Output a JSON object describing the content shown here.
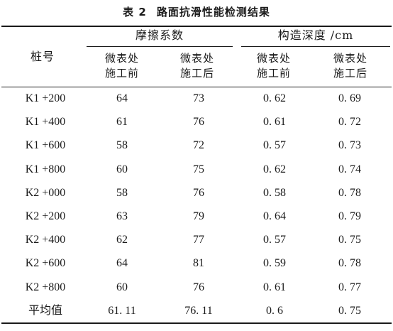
{
  "caption": {
    "number": "表 2",
    "title": "路面抗滑性能检测结果"
  },
  "header": {
    "stake": "桩号",
    "friction": "摩擦系数",
    "texture": "构造深度 /cm",
    "before": [
      "微表处",
      "施工前"
    ],
    "after": [
      "微表处",
      "施工后"
    ]
  },
  "rows": [
    [
      "K1 +200",
      "64",
      "73",
      "0. 62",
      "0. 69"
    ],
    [
      "K1 +400",
      "61",
      "76",
      "0. 61",
      "0. 72"
    ],
    [
      "K1 +600",
      "58",
      "72",
      "0. 57",
      "0. 73"
    ],
    [
      "K1 +800",
      "60",
      "75",
      "0. 62",
      "0. 74"
    ],
    [
      "K2 +000",
      "58",
      "76",
      "0. 58",
      "0. 78"
    ],
    [
      "K2 +200",
      "63",
      "79",
      "0. 64",
      "0. 79"
    ],
    [
      "K2 +400",
      "62",
      "77",
      "0. 57",
      "0. 75"
    ],
    [
      "K2 +600",
      "64",
      "81",
      "0. 59",
      "0. 78"
    ],
    [
      "K2 +800",
      "60",
      "76",
      "0. 61",
      "0. 77"
    ],
    [
      "平均值",
      "61. 11",
      "76. 11",
      "0. 6",
      "0. 75"
    ]
  ]
}
